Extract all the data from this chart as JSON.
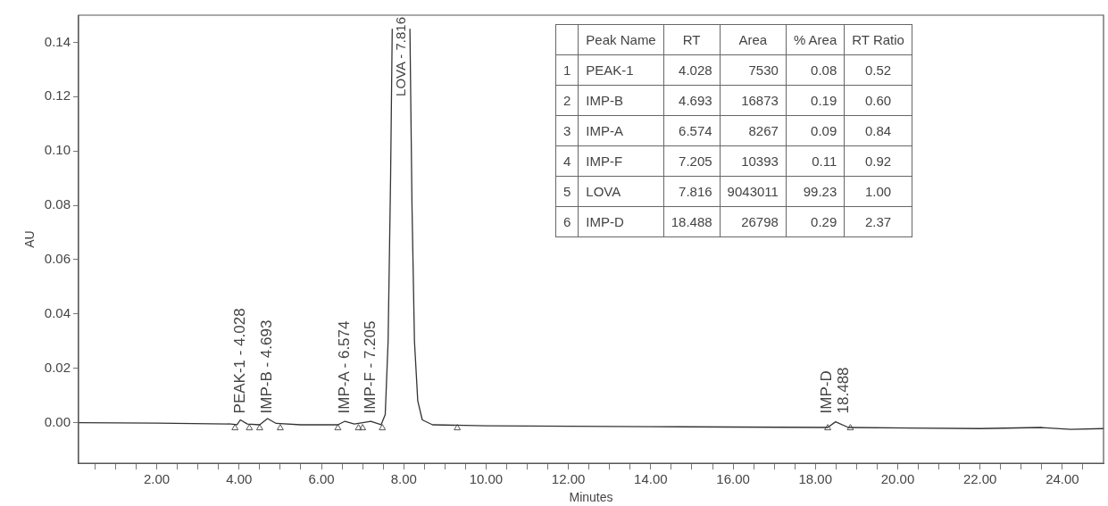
{
  "chart_data": {
    "type": "line",
    "xlabel": "Minutes",
    "ylabel": "AU",
    "xlim": [
      0.1,
      25
    ],
    "ylim": [
      -0.015,
      0.15
    ],
    "xticks": [
      {
        "value": 0.5,
        "label": null
      },
      {
        "value": 1,
        "label": null
      },
      {
        "value": 1.5,
        "label": null
      },
      {
        "value": 2,
        "label": "2.00"
      },
      {
        "value": 2.5,
        "label": null
      },
      {
        "value": 3,
        "label": null
      },
      {
        "value": 3.5,
        "label": null
      },
      {
        "value": 4,
        "label": "4.00"
      },
      {
        "value": 4.5,
        "label": null
      },
      {
        "value": 5,
        "label": null
      },
      {
        "value": 5.5,
        "label": null
      },
      {
        "value": 6,
        "label": "6.00"
      },
      {
        "value": 6.5,
        "label": null
      },
      {
        "value": 7,
        "label": null
      },
      {
        "value": 7.5,
        "label": null
      },
      {
        "value": 8,
        "label": "8.00"
      },
      {
        "value": 8.5,
        "label": null
      },
      {
        "value": 9,
        "label": null
      },
      {
        "value": 9.5,
        "label": null
      },
      {
        "value": 10,
        "label": "10.00"
      },
      {
        "value": 10.5,
        "label": null
      },
      {
        "value": 11,
        "label": null
      },
      {
        "value": 11.5,
        "label": null
      },
      {
        "value": 12,
        "label": "12.00"
      },
      {
        "value": 12.5,
        "label": null
      },
      {
        "value": 13,
        "label": null
      },
      {
        "value": 13.5,
        "label": null
      },
      {
        "value": 14,
        "label": "14.00"
      },
      {
        "value": 14.5,
        "label": null
      },
      {
        "value": 15,
        "label": null
      },
      {
        "value": 15.5,
        "label": null
      },
      {
        "value": 16,
        "label": "16.00"
      },
      {
        "value": 16.5,
        "label": null
      },
      {
        "value": 17,
        "label": null
      },
      {
        "value": 17.5,
        "label": null
      },
      {
        "value": 18,
        "label": "18.00"
      },
      {
        "value": 18.5,
        "label": null
      },
      {
        "value": 19,
        "label": null
      },
      {
        "value": 19.5,
        "label": null
      },
      {
        "value": 20,
        "label": "20.00"
      },
      {
        "value": 20.5,
        "label": null
      },
      {
        "value": 21,
        "label": null
      },
      {
        "value": 21.5,
        "label": null
      },
      {
        "value": 22,
        "label": "22.00"
      },
      {
        "value": 22.5,
        "label": null
      },
      {
        "value": 23,
        "label": null
      },
      {
        "value": 23.5,
        "label": null
      },
      {
        "value": 24,
        "label": "24.00"
      },
      {
        "value": 24.5,
        "label": null
      }
    ],
    "yticks": [
      {
        "value": 0,
        "label": "0.00"
      },
      {
        "value": 0.02,
        "label": "0.02"
      },
      {
        "value": 0.04,
        "label": "0.04"
      },
      {
        "value": 0.06,
        "label": "0.06"
      },
      {
        "value": 0.08,
        "label": "0.08"
      },
      {
        "value": 0.1,
        "label": "0.10"
      },
      {
        "value": 0.12,
        "label": "0.12"
      },
      {
        "value": 0.14,
        "label": "0.14"
      }
    ],
    "grid": false,
    "legend": false,
    "series": [
      {
        "type": "line",
        "color": "#333333",
        "marker": "none",
        "line_style": "solid",
        "x": [
          0.1,
          2,
          3.8,
          3.95,
          4.03,
          4.2,
          4.5,
          4.69,
          4.9,
          5.5,
          6.4,
          6.57,
          6.8,
          7.2,
          7.45,
          7.55,
          7.62,
          7.68,
          7.72,
          7.9,
          8.15,
          8.2,
          8.26,
          8.34,
          8.45,
          8.7,
          10,
          14,
          18.3,
          18.49,
          18.8,
          22,
          23.5,
          24.2,
          25
        ],
        "values": [
          0,
          -0.0002,
          -0.0005,
          -0.0008,
          0.001,
          -0.0005,
          -0.0008,
          0.0015,
          -0.0003,
          -0.0008,
          -0.0008,
          0.0005,
          -0.0005,
          0.0005,
          -0.0008,
          0.003,
          0.03,
          0.09,
          0.145,
          null,
          0.145,
          0.08,
          0.03,
          0.008,
          0.001,
          -0.0008,
          -0.0012,
          -0.0015,
          -0.0018,
          0.0003,
          -0.0018,
          -0.0022,
          -0.0018,
          -0.0025,
          -0.0022
        ]
      },
      {
        "type": "scatter",
        "color": "#555555",
        "marker": "triangle",
        "x": [
          3.9,
          4.25,
          4.5,
          5.0,
          6.4,
          6.9,
          7.0,
          7.48,
          9.3,
          18.3,
          18.85
        ],
        "values": [
          -0.002,
          -0.002,
          -0.002,
          -0.002,
          -0.002,
          -0.002,
          -0.002,
          -0.002,
          -0.002,
          -0.002,
          -0.002
        ]
      }
    ],
    "annotations": [
      {
        "text": "PEAK-1 - 4.028",
        "x": 4.028,
        "y": 0.002
      },
      {
        "text": "IMP-B - 4.693",
        "x": 4.693,
        "y": 0.002
      },
      {
        "text": "IMP-A - 6.574",
        "x": 6.574,
        "y": 0.002
      },
      {
        "text": "IMP-F - 7.205",
        "x": 7.205,
        "y": 0.002
      },
      "LOVA - 7.816",
      {
        "text": "IMP-D\n18.488",
        "x": 18.488,
        "y": 0.002
      },
      "Peak Name",
      "RT",
      "Area",
      "% Area",
      "RT Ratio",
      "1",
      "PEAK-1",
      "4.028",
      "7530",
      "0.08",
      "0.52",
      "2",
      "IMP-B",
      "4.693",
      "16873",
      "0.19",
      "0.60",
      "3",
      "IMP-A",
      "6.574",
      "8267",
      "0.09",
      "0.84",
      "4",
      "IMP-F",
      "7.205",
      "10393",
      "0.11",
      "0.92",
      "5",
      "LOVA",
      "7.816",
      "9043011",
      "99.23",
      "1.00",
      "6",
      "IMP-D",
      "18.488",
      "26798",
      "0.29",
      "2.37"
    ]
  }
}
